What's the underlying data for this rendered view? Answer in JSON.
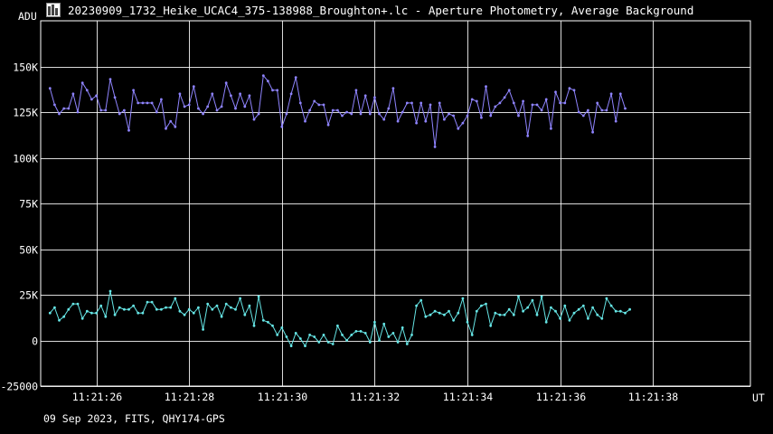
{
  "window": {
    "title": "20230909_1732_Heike_UCAC4_375-138988_Broughton+.lc - Aperture Photometry, Average Background",
    "icon": "lightcurve-icon"
  },
  "footer": "09 Sep 2023, FITS, QHY174-GPS",
  "colors": {
    "background": "#000000",
    "grid": "#ffffff",
    "series1": "#8f84ff",
    "series2": "#66e6e6"
  },
  "chart_data": {
    "type": "line",
    "title": "",
    "ylabel": "ADU",
    "xlabel": "UT",
    "ylim": [
      -25000,
      175000
    ],
    "xlim": [
      -0.2,
      15.1
    ],
    "x_ticks": [
      1,
      3,
      5,
      7,
      9,
      11,
      13
    ],
    "x_tick_labels": [
      "11:21:26",
      "11:21:28",
      "11:21:30",
      "11:21:32",
      "11:21:34",
      "11:21:36",
      "11:21:38"
    ],
    "y_ticks": [
      -25000,
      0,
      25000,
      50000,
      75000,
      100000,
      125000,
      150000
    ],
    "y_tick_labels": [
      "-25000",
      "0",
      "25K",
      "50K",
      "75K",
      "100K",
      "125K",
      "150K"
    ],
    "grid": true,
    "legend": "none",
    "sample_interval_s": 0.1,
    "series": [
      {
        "values": [
          138000,
          129000,
          124000,
          127000,
          127000,
          135000,
          125000,
          141000,
          137000,
          132000,
          134000,
          126000,
          126000,
          143000,
          133000,
          124000,
          126000,
          115000,
          137000,
          130000,
          130000,
          130000,
          130000,
          125000,
          132000,
          116000,
          120000,
          117000,
          135000,
          128000,
          129000,
          139000,
          127000,
          124000,
          128000,
          135000,
          126000,
          128000,
          141000,
          134000,
          127000,
          135000,
          128000,
          134000,
          121000,
          124000,
          145000,
          142000,
          137000,
          137000,
          117000,
          124000,
          135000,
          144000,
          130000,
          120000,
          126000,
          131000,
          129000,
          129000,
          118000,
          126000,
          126000,
          123000,
          125000,
          124000,
          137000,
          124000,
          134000,
          124000,
          133000,
          124000,
          121000,
          127000,
          138000,
          120000,
          125000,
          130000,
          130000,
          119000,
          130000,
          120000,
          129000,
          106000,
          130000,
          121000,
          124000,
          123000,
          116000,
          119000,
          123000,
          132000,
          131000,
          122000,
          139000,
          123000,
          128000,
          130000,
          133000,
          137000,
          130000,
          123000,
          131000,
          112000,
          129000,
          129000,
          126000,
          132000,
          116000,
          136000,
          130000,
          130000,
          138000,
          137000,
          125000,
          123000,
          126000,
          114000,
          130000,
          126000,
          126000,
          135000,
          120000,
          135000,
          127000
        ],
        "note": ""
      },
      {
        "values": [
          15000,
          18000,
          11000,
          13000,
          17000,
          20000,
          20000,
          12000,
          16000,
          15000,
          15000,
          19000,
          13000,
          27000,
          14000,
          18000,
          17000,
          17000,
          19000,
          15000,
          15000,
          21000,
          21000,
          17000,
          17000,
          18000,
          18000,
          23000,
          16000,
          14000,
          17000,
          15000,
          18000,
          6000,
          20000,
          17000,
          19000,
          13000,
          20000,
          18000,
          17000,
          23000,
          14000,
          19000,
          8000,
          24000,
          11000,
          10000,
          8000,
          3000,
          7000,
          2000,
          -3000,
          4000,
          1000,
          -3000,
          3000,
          2000,
          -1000,
          3000,
          -1000,
          -2000,
          8000,
          3000,
          0,
          3000,
          5000,
          5000,
          4000,
          -1000,
          10000,
          0,
          9000,
          2000,
          4000,
          -1000,
          7000,
          -2000,
          3000,
          19000,
          22000,
          13000,
          14000,
          16000,
          15000,
          14000,
          16000,
          11000,
          15000,
          23000,
          10000,
          3000,
          16000,
          19000,
          20000,
          8000,
          15000,
          14000,
          14000,
          17000,
          14000,
          24000,
          16000,
          18000,
          22000,
          14000,
          24000,
          10000,
          18000,
          16000,
          12000,
          19000,
          11000,
          15000,
          17000,
          19000,
          12000,
          18000,
          14000,
          12000,
          23000,
          19000,
          16000,
          16000,
          15000,
          17000
        ]
      }
    ]
  }
}
